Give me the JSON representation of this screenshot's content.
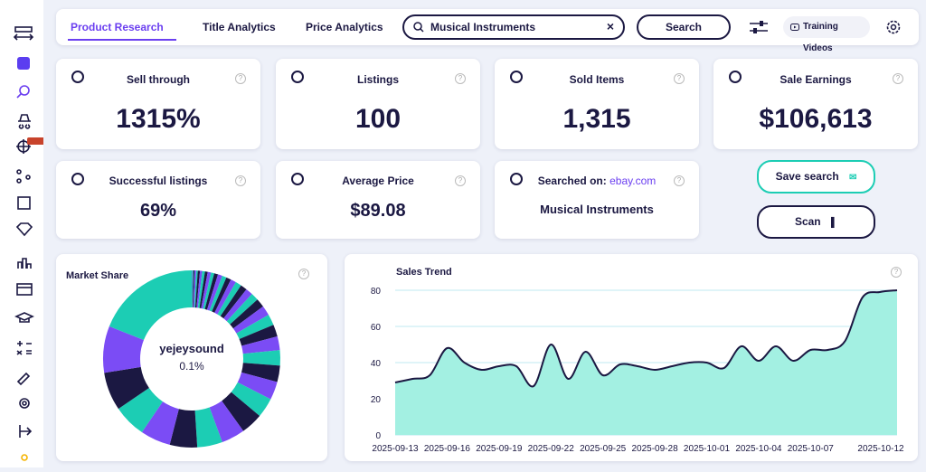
{
  "header": {
    "tabs": [
      "Product Research",
      "Title Analytics",
      "Price Analytics"
    ],
    "search_query": "Musical Instruments",
    "search_button": "Search",
    "training_videos": "Training Videos"
  },
  "cards": [
    {
      "title": "Sell through",
      "value": "1315%"
    },
    {
      "title": "Listings",
      "value": "100"
    },
    {
      "title": "Sold Items",
      "value": "1,315"
    },
    {
      "title": "Sale Earnings",
      "value": "$106,613"
    },
    {
      "title": "Successful listings",
      "value": "69%"
    },
    {
      "title": "Average Price",
      "value": "$89.08"
    },
    {
      "title": "Searched on:",
      "site": "ebay.com",
      "value": "Musical Instruments"
    }
  ],
  "buttons": {
    "save": "Save search",
    "scan": "Scan"
  },
  "chart_data": [
    {
      "type": "pie",
      "title": "Market Share",
      "center_label": "yejeysound",
      "center_value": {
        "value": 0.1,
        "label": "0.1%"
      },
      "colors": [
        "#7b4cf5",
        "#1ccdb4",
        "#1b1842"
      ],
      "values": [
        0.1,
        0.2,
        0.2,
        0.3,
        0.3,
        0.4,
        0.4,
        0.5,
        0.5,
        0.6,
        0.6,
        0.7,
        0.8,
        0.8,
        0.9,
        1.0,
        1.1,
        1.2,
        1.3,
        1.4,
        1.6,
        1.8,
        2.0,
        2.2,
        2.5,
        2.8,
        3.0,
        3.3,
        3.6,
        4.0,
        4.3,
        4.6,
        5.0,
        5.5,
        6.0,
        7.0,
        8.5,
        19
      ]
    },
    {
      "type": "area",
      "title": "Sales Trend",
      "color": "#a3f0e2",
      "line_color": "#1b1842",
      "categories": [
        "2025-09-13",
        null,
        null,
        "2025-09-16",
        null,
        null,
        "2025-09-19",
        null,
        null,
        "2025-09-22",
        null,
        null,
        "2025-09-25",
        null,
        null,
        "2025-09-28",
        null,
        null,
        "2025-10-01",
        null,
        null,
        "2025-10-04",
        null,
        null,
        "2025-10-07",
        null,
        null,
        null,
        null,
        "2025-10-12"
      ],
      "values": [
        29,
        31,
        33,
        48,
        40,
        36,
        38,
        38,
        27,
        50,
        31,
        46,
        33,
        39,
        38,
        36,
        38,
        40,
        40,
        37,
        49,
        41,
        49,
        41,
        47,
        47,
        52,
        76,
        79,
        80
      ],
      "ylim": [
        0,
        82
      ],
      "yticks": [
        0,
        20,
        40,
        60,
        80
      ],
      "grid": true
    }
  ]
}
